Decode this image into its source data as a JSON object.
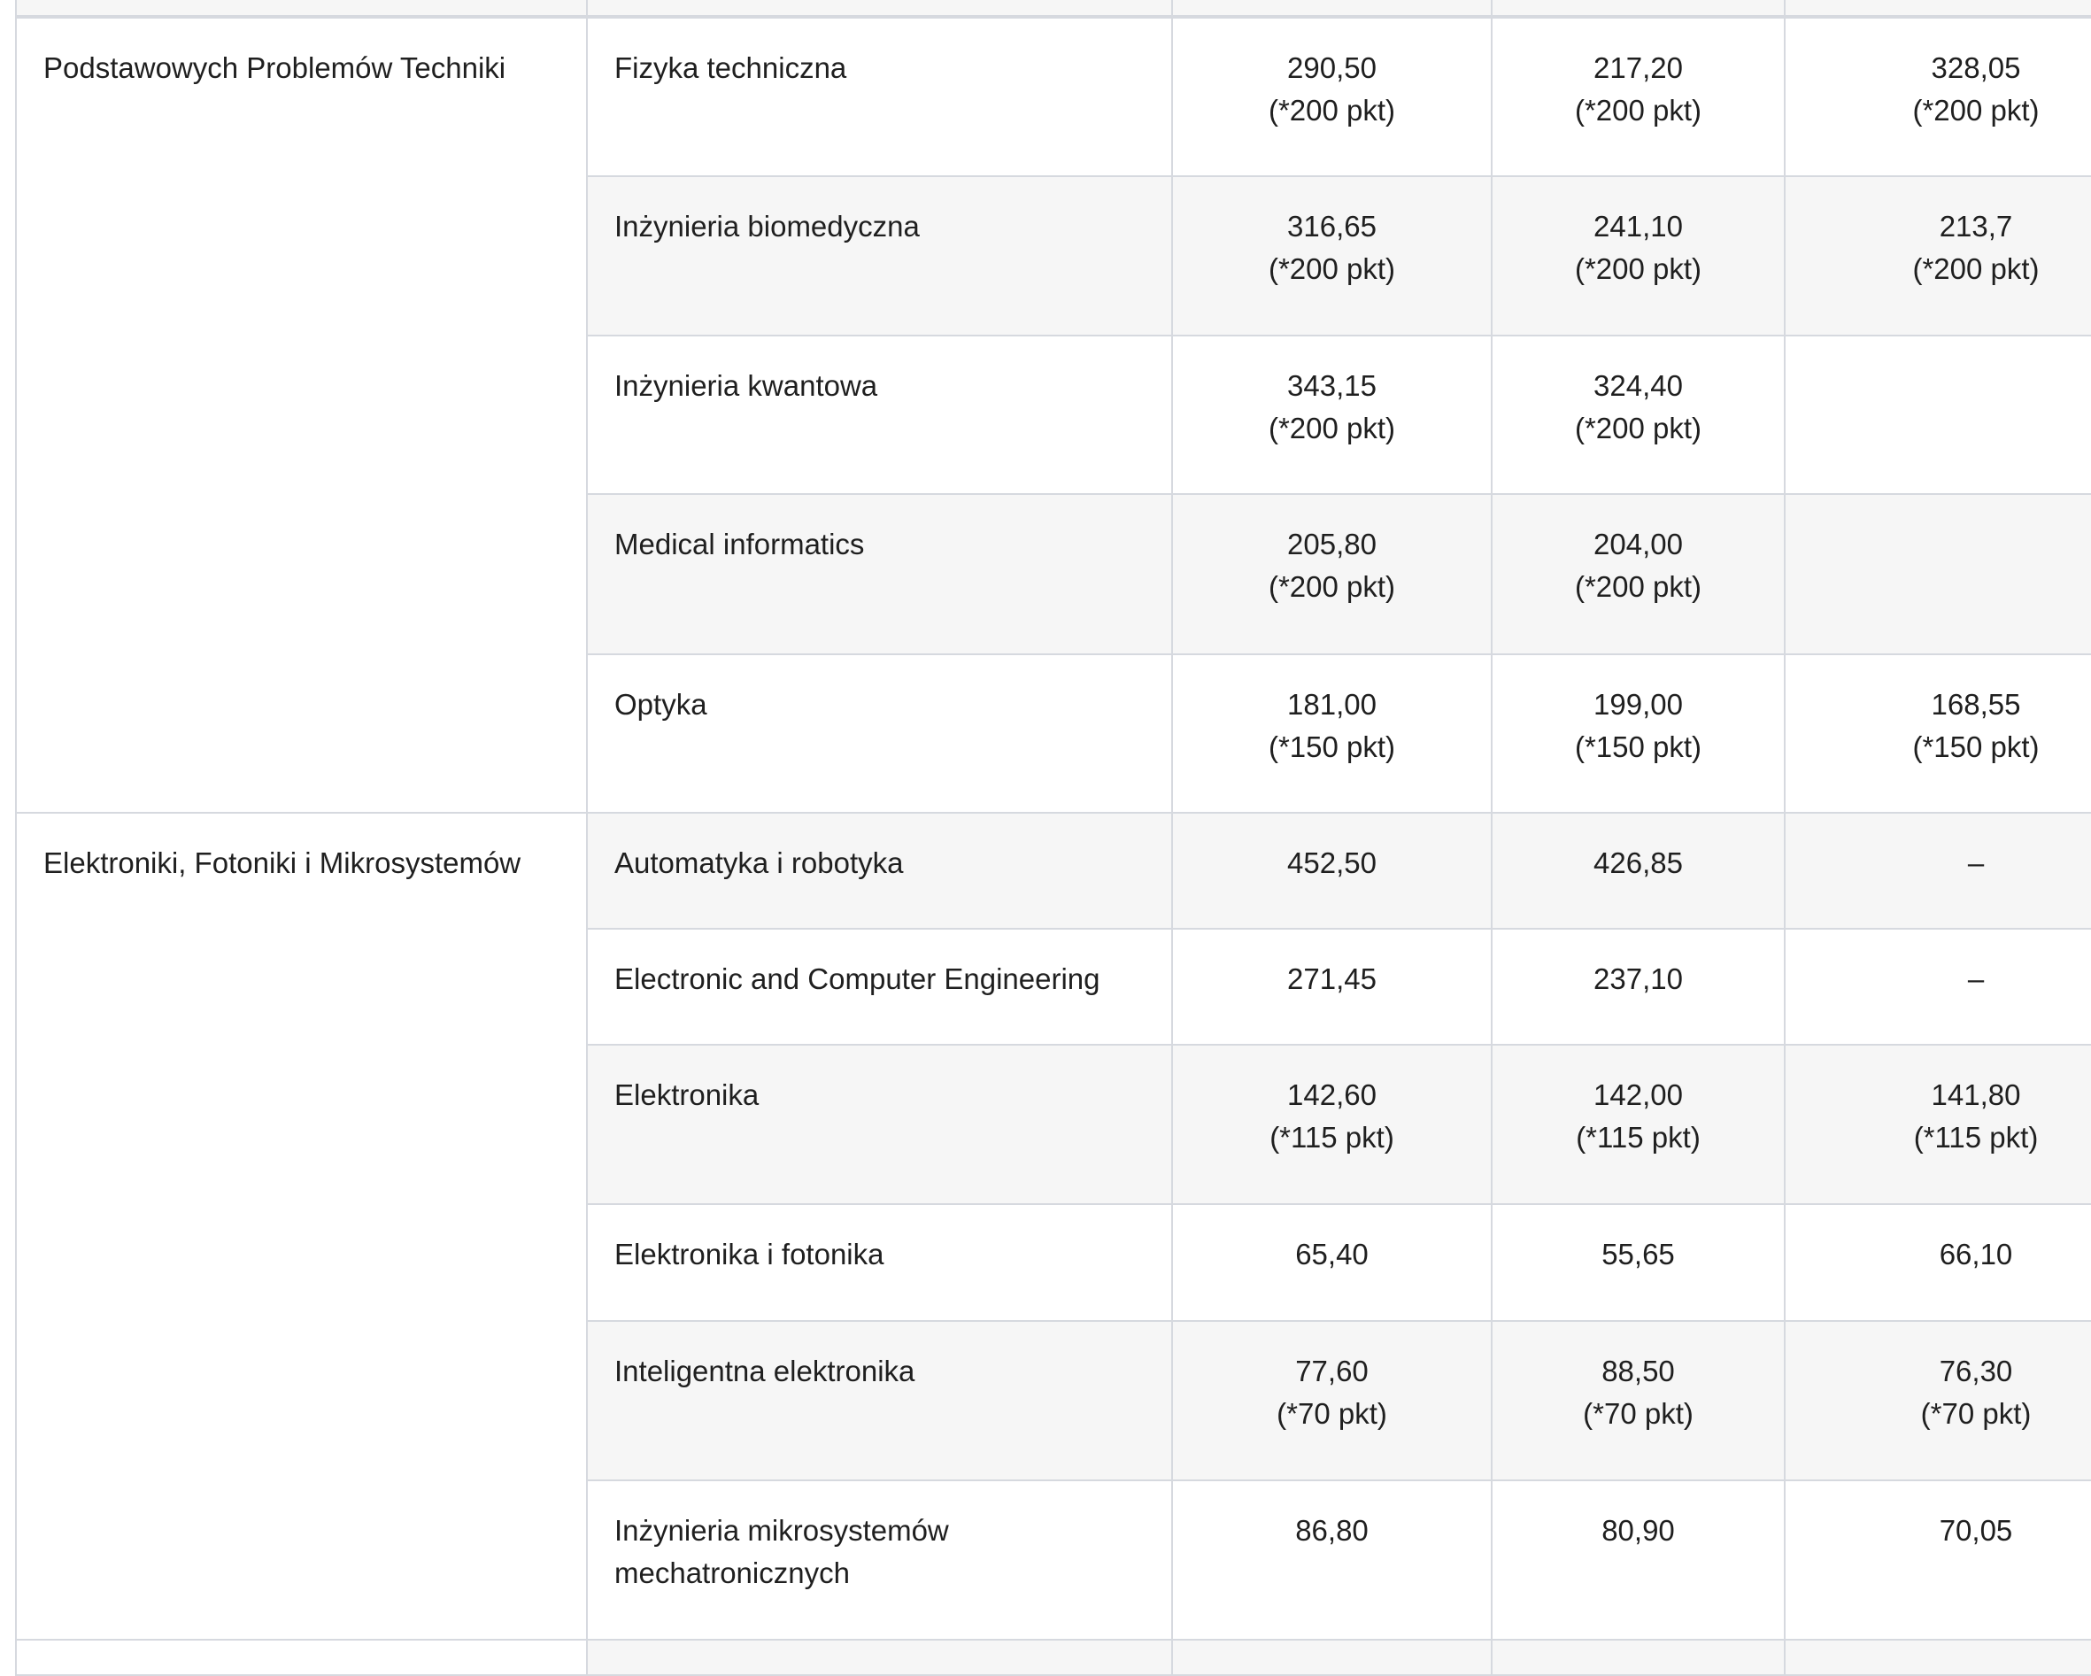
{
  "groups": [
    {
      "name": "Podstawowych Problemów Techniki",
      "rows": [
        {
          "program": "Fizyka techniczna",
          "values": [
            [
              "290,50",
              "(*200 pkt)"
            ],
            [
              "217,20",
              "(*200 pkt)"
            ],
            [
              "328,05",
              "(*200 pkt)"
            ]
          ]
        },
        {
          "program": "Inżynieria biomedyczna",
          "values": [
            [
              "316,65",
              "(*200 pkt)"
            ],
            [
              "241,10",
              "(*200 pkt)"
            ],
            [
              "213,7",
              "(*200 pkt)"
            ]
          ]
        },
        {
          "program": "Inżynieria kwantowa",
          "values": [
            [
              "343,15",
              "(*200 pkt)"
            ],
            [
              "324,40",
              "(*200 pkt)"
            ],
            [
              "",
              ""
            ]
          ]
        },
        {
          "program": "Medical informatics",
          "values": [
            [
              "205,80",
              "(*200 pkt)"
            ],
            [
              "204,00",
              "(*200 pkt)"
            ],
            [
              "",
              ""
            ]
          ]
        },
        {
          "program": "Optyka",
          "values": [
            [
              "181,00",
              "(*150 pkt)"
            ],
            [
              "199,00",
              "(*150 pkt)"
            ],
            [
              "168,55",
              "(*150 pkt)"
            ]
          ]
        }
      ]
    },
    {
      "name": "Elektroniki, Fotoniki i Mikrosystemów",
      "rows": [
        {
          "program": "Automatyka i robotyka",
          "values": [
            [
              "452,50",
              ""
            ],
            [
              "426,85",
              ""
            ],
            [
              "–",
              ""
            ]
          ]
        },
        {
          "program": "Electronic and Computer Engineering",
          "values": [
            [
              "271,45",
              ""
            ],
            [
              "237,10",
              ""
            ],
            [
              "–",
              ""
            ]
          ]
        },
        {
          "program": "Elektronika",
          "values": [
            [
              "142,60",
              "(*115 pkt)"
            ],
            [
              "142,00",
              "(*115 pkt)"
            ],
            [
              "141,80",
              "(*115 pkt)"
            ]
          ]
        },
        {
          "program": "Elektronika i fotonika",
          "values": [
            [
              "65,40",
              ""
            ],
            [
              "55,65",
              ""
            ],
            [
              "66,10",
              ""
            ]
          ]
        },
        {
          "program": "Inteligentna elektronika",
          "values": [
            [
              "77,60",
              "(*70 pkt)"
            ],
            [
              "88,50",
              "(*70 pkt)"
            ],
            [
              "76,30",
              "(*70 pkt)"
            ]
          ]
        },
        {
          "program": "Inżynieria mikrosystemów mechatronicznych",
          "values": [
            [
              "86,80",
              ""
            ],
            [
              "80,90",
              ""
            ],
            [
              "70,05",
              ""
            ]
          ]
        }
      ]
    }
  ],
  "colors": {
    "border": "#d6d9df",
    "stripe": "#f6f6f6",
    "text": "#1f1f1f"
  }
}
